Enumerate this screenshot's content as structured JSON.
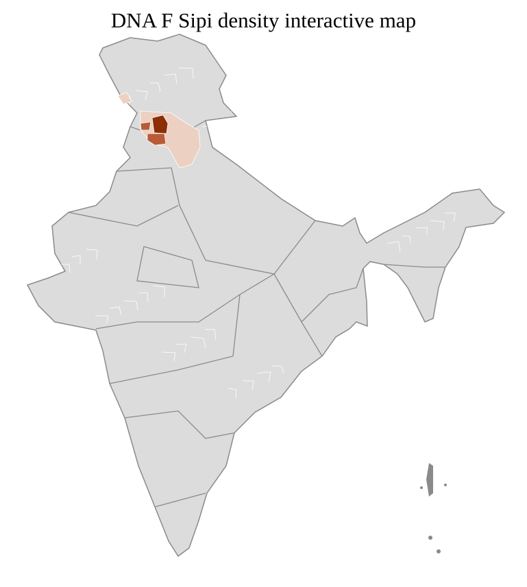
{
  "title": "DNA F Sipi density interactive map",
  "chart_data": {
    "type": "choropleth",
    "region": "India districts",
    "colors": {
      "land": "#dcdcdc",
      "district_border": "#ffffff",
      "state_border": "#8a8a8a",
      "highest": "#8b2e05",
      "high": "#b85c38",
      "low": "#ecd0c2"
    },
    "highlighted_levels": [
      "highest",
      "high",
      "low"
    ]
  }
}
